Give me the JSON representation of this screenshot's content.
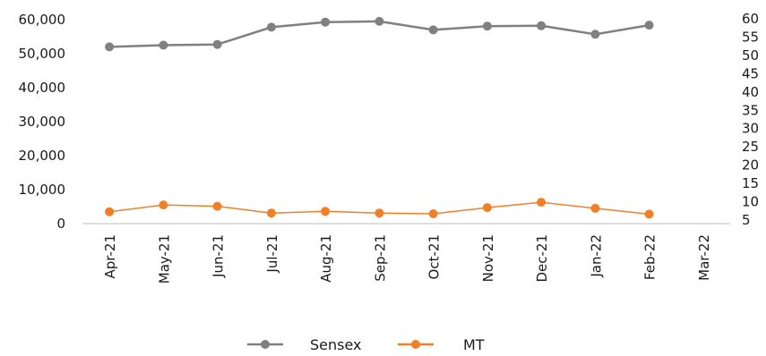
{
  "chart_data": {
    "type": "line",
    "categories": [
      "Apr-21",
      "May-21",
      "Jun-21",
      "Jul-21",
      "Aug-21",
      "Sep-21",
      "Oct-21",
      "Nov-21",
      "Dec-21",
      "Jan-22",
      "Feb-22",
      "Mar-22"
    ],
    "y_left": {
      "ylim": [
        0,
        60000
      ],
      "ticks": [
        0,
        10000,
        20000,
        30000,
        40000,
        50000,
        60000
      ],
      "tick_labels": [
        "0",
        "10,000",
        "20,000",
        "30,000",
        "40,000",
        "50,000",
        "60,000"
      ]
    },
    "y_right": {
      "ylim": [
        5,
        60
      ],
      "ticks": [
        5,
        10,
        15,
        20,
        25,
        30,
        35,
        40,
        45,
        50,
        55,
        60
      ],
      "tick_labels": [
        "5",
        "10",
        "15",
        "20",
        "25",
        "30",
        "35",
        "40",
        "45",
        "50",
        "55",
        "60"
      ]
    },
    "series": [
      {
        "name": "Sensex",
        "axis": "left",
        "color": "#808080",
        "values": [
          52000,
          52500,
          52700,
          57800,
          59300,
          59500,
          57000,
          58100,
          58200,
          55700,
          58400,
          null
        ]
      },
      {
        "name": "MT",
        "axis": "left",
        "color": "#f07f28",
        "values": [
          3500,
          5500,
          5100,
          3100,
          3600,
          3100,
          2900,
          4700,
          6300,
          4500,
          2800,
          null
        ]
      }
    ],
    "legend_position": "bottom",
    "grid": false
  }
}
